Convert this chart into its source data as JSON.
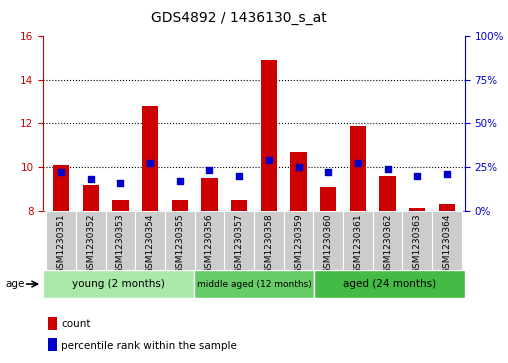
{
  "title": "GDS4892 / 1436130_s_at",
  "samples": [
    "GSM1230351",
    "GSM1230352",
    "GSM1230353",
    "GSM1230354",
    "GSM1230355",
    "GSM1230356",
    "GSM1230357",
    "GSM1230358",
    "GSM1230359",
    "GSM1230360",
    "GSM1230361",
    "GSM1230362",
    "GSM1230363",
    "GSM1230364"
  ],
  "count_values": [
    10.1,
    9.15,
    8.5,
    12.8,
    8.5,
    9.5,
    8.5,
    14.9,
    10.7,
    9.1,
    11.9,
    9.6,
    8.1,
    8.3
  ],
  "percentile_values": [
    22,
    18,
    16,
    27,
    17,
    23,
    20,
    29,
    25,
    22,
    27,
    24,
    20,
    21
  ],
  "y_min": 8,
  "y_max": 16,
  "y_ticks_left": [
    8,
    10,
    12,
    14,
    16
  ],
  "y_ticks_right": [
    0,
    25,
    50,
    75,
    100
  ],
  "bar_color": "#cc0000",
  "dot_color": "#0000cc",
  "bar_width": 0.55,
  "groups": [
    {
      "label": "young (2 months)",
      "start": 0,
      "end": 5,
      "color": "#aae8aa"
    },
    {
      "label": "middle aged (12 months)",
      "start": 5,
      "end": 9,
      "color": "#66cc66"
    },
    {
      "label": "aged (24 months)",
      "start": 9,
      "end": 14,
      "color": "#44bb44"
    }
  ],
  "age_label": "age",
  "legend_count_label": "count",
  "legend_percentile_label": "percentile rank within the sample",
  "title_fontsize": 10,
  "tick_fontsize": 6.5,
  "axis_label_color_left": "#cc0000",
  "axis_label_color_right": "#0000cc",
  "grid_color": "#000000",
  "background_color": "#ffffff",
  "xlabel_area_color": "#cccccc"
}
